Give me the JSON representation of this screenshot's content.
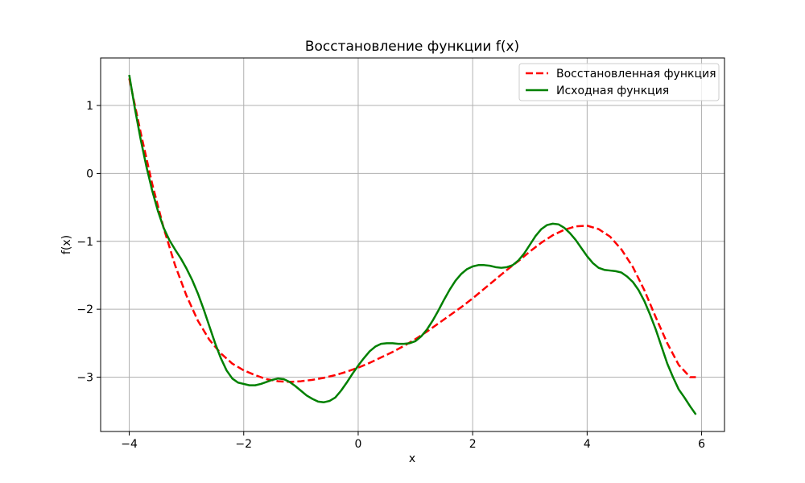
{
  "chart_data": {
    "type": "line",
    "title": "Восстановление функции f(x)",
    "xlabel": "x",
    "ylabel": "f(x)",
    "xlim": [
      -4.5,
      6.4
    ],
    "ylim": [
      -3.8,
      1.7
    ],
    "xticks": [
      -4,
      -2,
      0,
      2,
      4,
      6
    ],
    "yticks": [
      1,
      0,
      -1,
      -2,
      -3
    ],
    "xtick_labels": [
      "−4",
      "−2",
      "0",
      "2",
      "4",
      "6"
    ],
    "ytick_labels": [
      "1",
      "0",
      "−1",
      "−2",
      "−3"
    ],
    "grid": true,
    "legend_position": "top-right",
    "series": [
      {
        "name": "Восстановленная функция",
        "color": "#ff0000",
        "style": "dashed",
        "x": [
          -4.0,
          -3.8,
          -3.6,
          -3.4,
          -3.2,
          -3.0,
          -2.8,
          -2.6,
          -2.4,
          -2.2,
          -2.0,
          -1.8,
          -1.6,
          -1.4,
          -1.2,
          -1.0,
          -0.8,
          -0.6,
          -0.4,
          -0.2,
          0.0,
          0.2,
          0.4,
          0.6,
          0.8,
          1.0,
          1.2,
          1.4,
          1.6,
          1.8,
          2.0,
          2.2,
          2.4,
          2.6,
          2.8,
          3.0,
          3.2,
          3.4,
          3.6,
          3.8,
          4.0,
          4.2,
          4.4,
          4.6,
          4.8,
          5.0,
          5.2,
          5.4,
          5.6,
          5.8,
          5.9
        ],
        "y": [
          1.4,
          0.6,
          -0.15,
          -0.8,
          -1.35,
          -1.8,
          -2.17,
          -2.45,
          -2.65,
          -2.8,
          -2.9,
          -2.97,
          -3.03,
          -3.06,
          -3.07,
          -3.06,
          -3.04,
          -3.01,
          -2.97,
          -2.92,
          -2.86,
          -2.79,
          -2.71,
          -2.63,
          -2.54,
          -2.44,
          -2.33,
          -2.21,
          -2.09,
          -1.97,
          -1.84,
          -1.7,
          -1.56,
          -1.42,
          -1.29,
          -1.15,
          -1.02,
          -0.91,
          -0.83,
          -0.78,
          -0.77,
          -0.82,
          -0.93,
          -1.12,
          -1.38,
          -1.72,
          -2.12,
          -2.5,
          -2.82,
          -3.0,
          -3.0
        ]
      },
      {
        "name": "Исходная функция",
        "color": "#008000",
        "style": "solid",
        "x": [
          -4.0,
          -3.9,
          -3.8,
          -3.7,
          -3.6,
          -3.5,
          -3.4,
          -3.3,
          -3.2,
          -3.1,
          -3.0,
          -2.9,
          -2.8,
          -2.7,
          -2.6,
          -2.5,
          -2.4,
          -2.3,
          -2.2,
          -2.1,
          -2.0,
          -1.9,
          -1.8,
          -1.7,
          -1.6,
          -1.5,
          -1.4,
          -1.3,
          -1.2,
          -1.1,
          -1.0,
          -0.9,
          -0.8,
          -0.7,
          -0.6,
          -0.5,
          -0.4,
          -0.3,
          -0.2,
          -0.1,
          0.0,
          0.1,
          0.2,
          0.3,
          0.4,
          0.5,
          0.6,
          0.7,
          0.8,
          0.9,
          1.0,
          1.1,
          1.2,
          1.3,
          1.4,
          1.5,
          1.6,
          1.7,
          1.8,
          1.9,
          2.0,
          2.1,
          2.2,
          2.3,
          2.4,
          2.5,
          2.6,
          2.7,
          2.8,
          2.9,
          3.0,
          3.1,
          3.2,
          3.3,
          3.4,
          3.5,
          3.6,
          3.7,
          3.8,
          3.9,
          4.0,
          4.1,
          4.2,
          4.3,
          4.4,
          4.5,
          4.6,
          4.7,
          4.8,
          4.9,
          5.0,
          5.1,
          5.2,
          5.3,
          5.4,
          5.5,
          5.6,
          5.7,
          5.8,
          5.9
        ],
        "y": [
          1.45,
          0.95,
          0.5,
          0.1,
          -0.25,
          -0.55,
          -0.8,
          -0.98,
          -1.12,
          -1.25,
          -1.4,
          -1.57,
          -1.77,
          -2.0,
          -2.25,
          -2.5,
          -2.72,
          -2.9,
          -3.02,
          -3.08,
          -3.1,
          -3.12,
          -3.12,
          -3.1,
          -3.07,
          -3.04,
          -3.02,
          -3.03,
          -3.07,
          -3.13,
          -3.2,
          -3.27,
          -3.32,
          -3.36,
          -3.37,
          -3.35,
          -3.3,
          -3.2,
          -3.08,
          -2.95,
          -2.83,
          -2.72,
          -2.62,
          -2.55,
          -2.51,
          -2.5,
          -2.5,
          -2.51,
          -2.51,
          -2.5,
          -2.47,
          -2.4,
          -2.3,
          -2.17,
          -2.02,
          -1.86,
          -1.71,
          -1.58,
          -1.48,
          -1.41,
          -1.37,
          -1.35,
          -1.35,
          -1.36,
          -1.38,
          -1.39,
          -1.38,
          -1.35,
          -1.28,
          -1.18,
          -1.05,
          -0.92,
          -0.82,
          -0.76,
          -0.74,
          -0.75,
          -0.8,
          -0.88,
          -0.98,
          -1.1,
          -1.22,
          -1.32,
          -1.39,
          -1.42,
          -1.43,
          -1.44,
          -1.46,
          -1.52,
          -1.6,
          -1.72,
          -1.88,
          -2.08,
          -2.3,
          -2.55,
          -2.8,
          -3.0,
          -3.18,
          -3.3,
          -3.43,
          -3.55
        ]
      }
    ]
  }
}
